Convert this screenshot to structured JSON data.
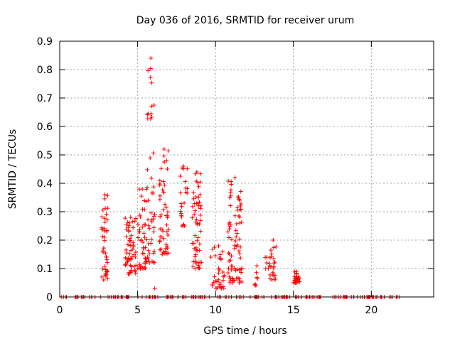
{
  "chart_data": {
    "type": "scatter",
    "title": "Day 036 of 2016, SRMTID for receiver urum",
    "xlabel": "GPS time / hours",
    "ylabel": "SRMTID / TECUs",
    "xlim": [
      0,
      24
    ],
    "ylim": [
      0,
      0.9
    ],
    "x_ticks": [
      0,
      5,
      10,
      15,
      20
    ],
    "y_ticks": [
      0,
      0.1,
      0.2,
      0.3,
      0.4,
      0.5,
      0.6,
      0.7,
      0.8,
      0.9
    ],
    "x_tick_labels": [
      "0",
      "5",
      "10",
      "15",
      "20"
    ],
    "y_tick_labels": [
      "0",
      "0.1",
      "0.2",
      "0.3",
      "0.4",
      "0.5",
      "0.6",
      "0.7",
      "0.8",
      "0.9"
    ],
    "grid": true,
    "marker": "plus",
    "color": "#ff0000",
    "clusters": [
      {
        "x": [
          2.7,
          3.1
        ],
        "y": [
          0.06,
          0.36
        ]
      },
      {
        "x": [
          4.2,
          4.9
        ],
        "y": [
          0.08,
          0.28
        ]
      },
      {
        "x": [
          5.0,
          5.6
        ],
        "y": [
          0.1,
          0.38
        ]
      },
      {
        "x": [
          5.6,
          6.1
        ],
        "y": [
          0.12,
          0.84
        ]
      },
      {
        "x": [
          6.4,
          7.0
        ],
        "y": [
          0.15,
          0.52
        ]
      },
      {
        "x": [
          7.7,
          8.2
        ],
        "y": [
          0.25,
          0.46
        ]
      },
      {
        "x": [
          8.5,
          9.1
        ],
        "y": [
          0.1,
          0.44
        ]
      },
      {
        "x": [
          9.8,
          10.6
        ],
        "y": [
          0.03,
          0.18
        ]
      },
      {
        "x": [
          10.8,
          11.7
        ],
        "y": [
          0.05,
          0.42
        ]
      },
      {
        "x": [
          12.5,
          12.8
        ],
        "y": [
          0.04,
          0.11
        ]
      },
      {
        "x": [
          13.1,
          13.5
        ],
        "y": [
          0.1,
          0.14
        ]
      },
      {
        "x": [
          13.5,
          13.9
        ],
        "y": [
          0.06,
          0.2
        ]
      },
      {
        "x": [
          15.0,
          15.4
        ],
        "y": [
          0.05,
          0.09
        ]
      }
    ],
    "point_counts": [
      40,
      55,
      45,
      45,
      50,
      20,
      55,
      30,
      80,
      5,
      5,
      20,
      25
    ],
    "outliers": [
      {
        "x": 6.1,
        "y": 0.03
      },
      {
        "x": 9.7,
        "y": 0.14
      },
      {
        "x": 11.6,
        "y": 0.32
      }
    ],
    "zero_row": {
      "y": 0,
      "x_ranges": [
        [
          0.1,
          0.6
        ],
        [
          1.0,
          4.6
        ],
        [
          5.0,
          16.8
        ],
        [
          17.5,
          22.0
        ]
      ],
      "count": 180
    }
  }
}
